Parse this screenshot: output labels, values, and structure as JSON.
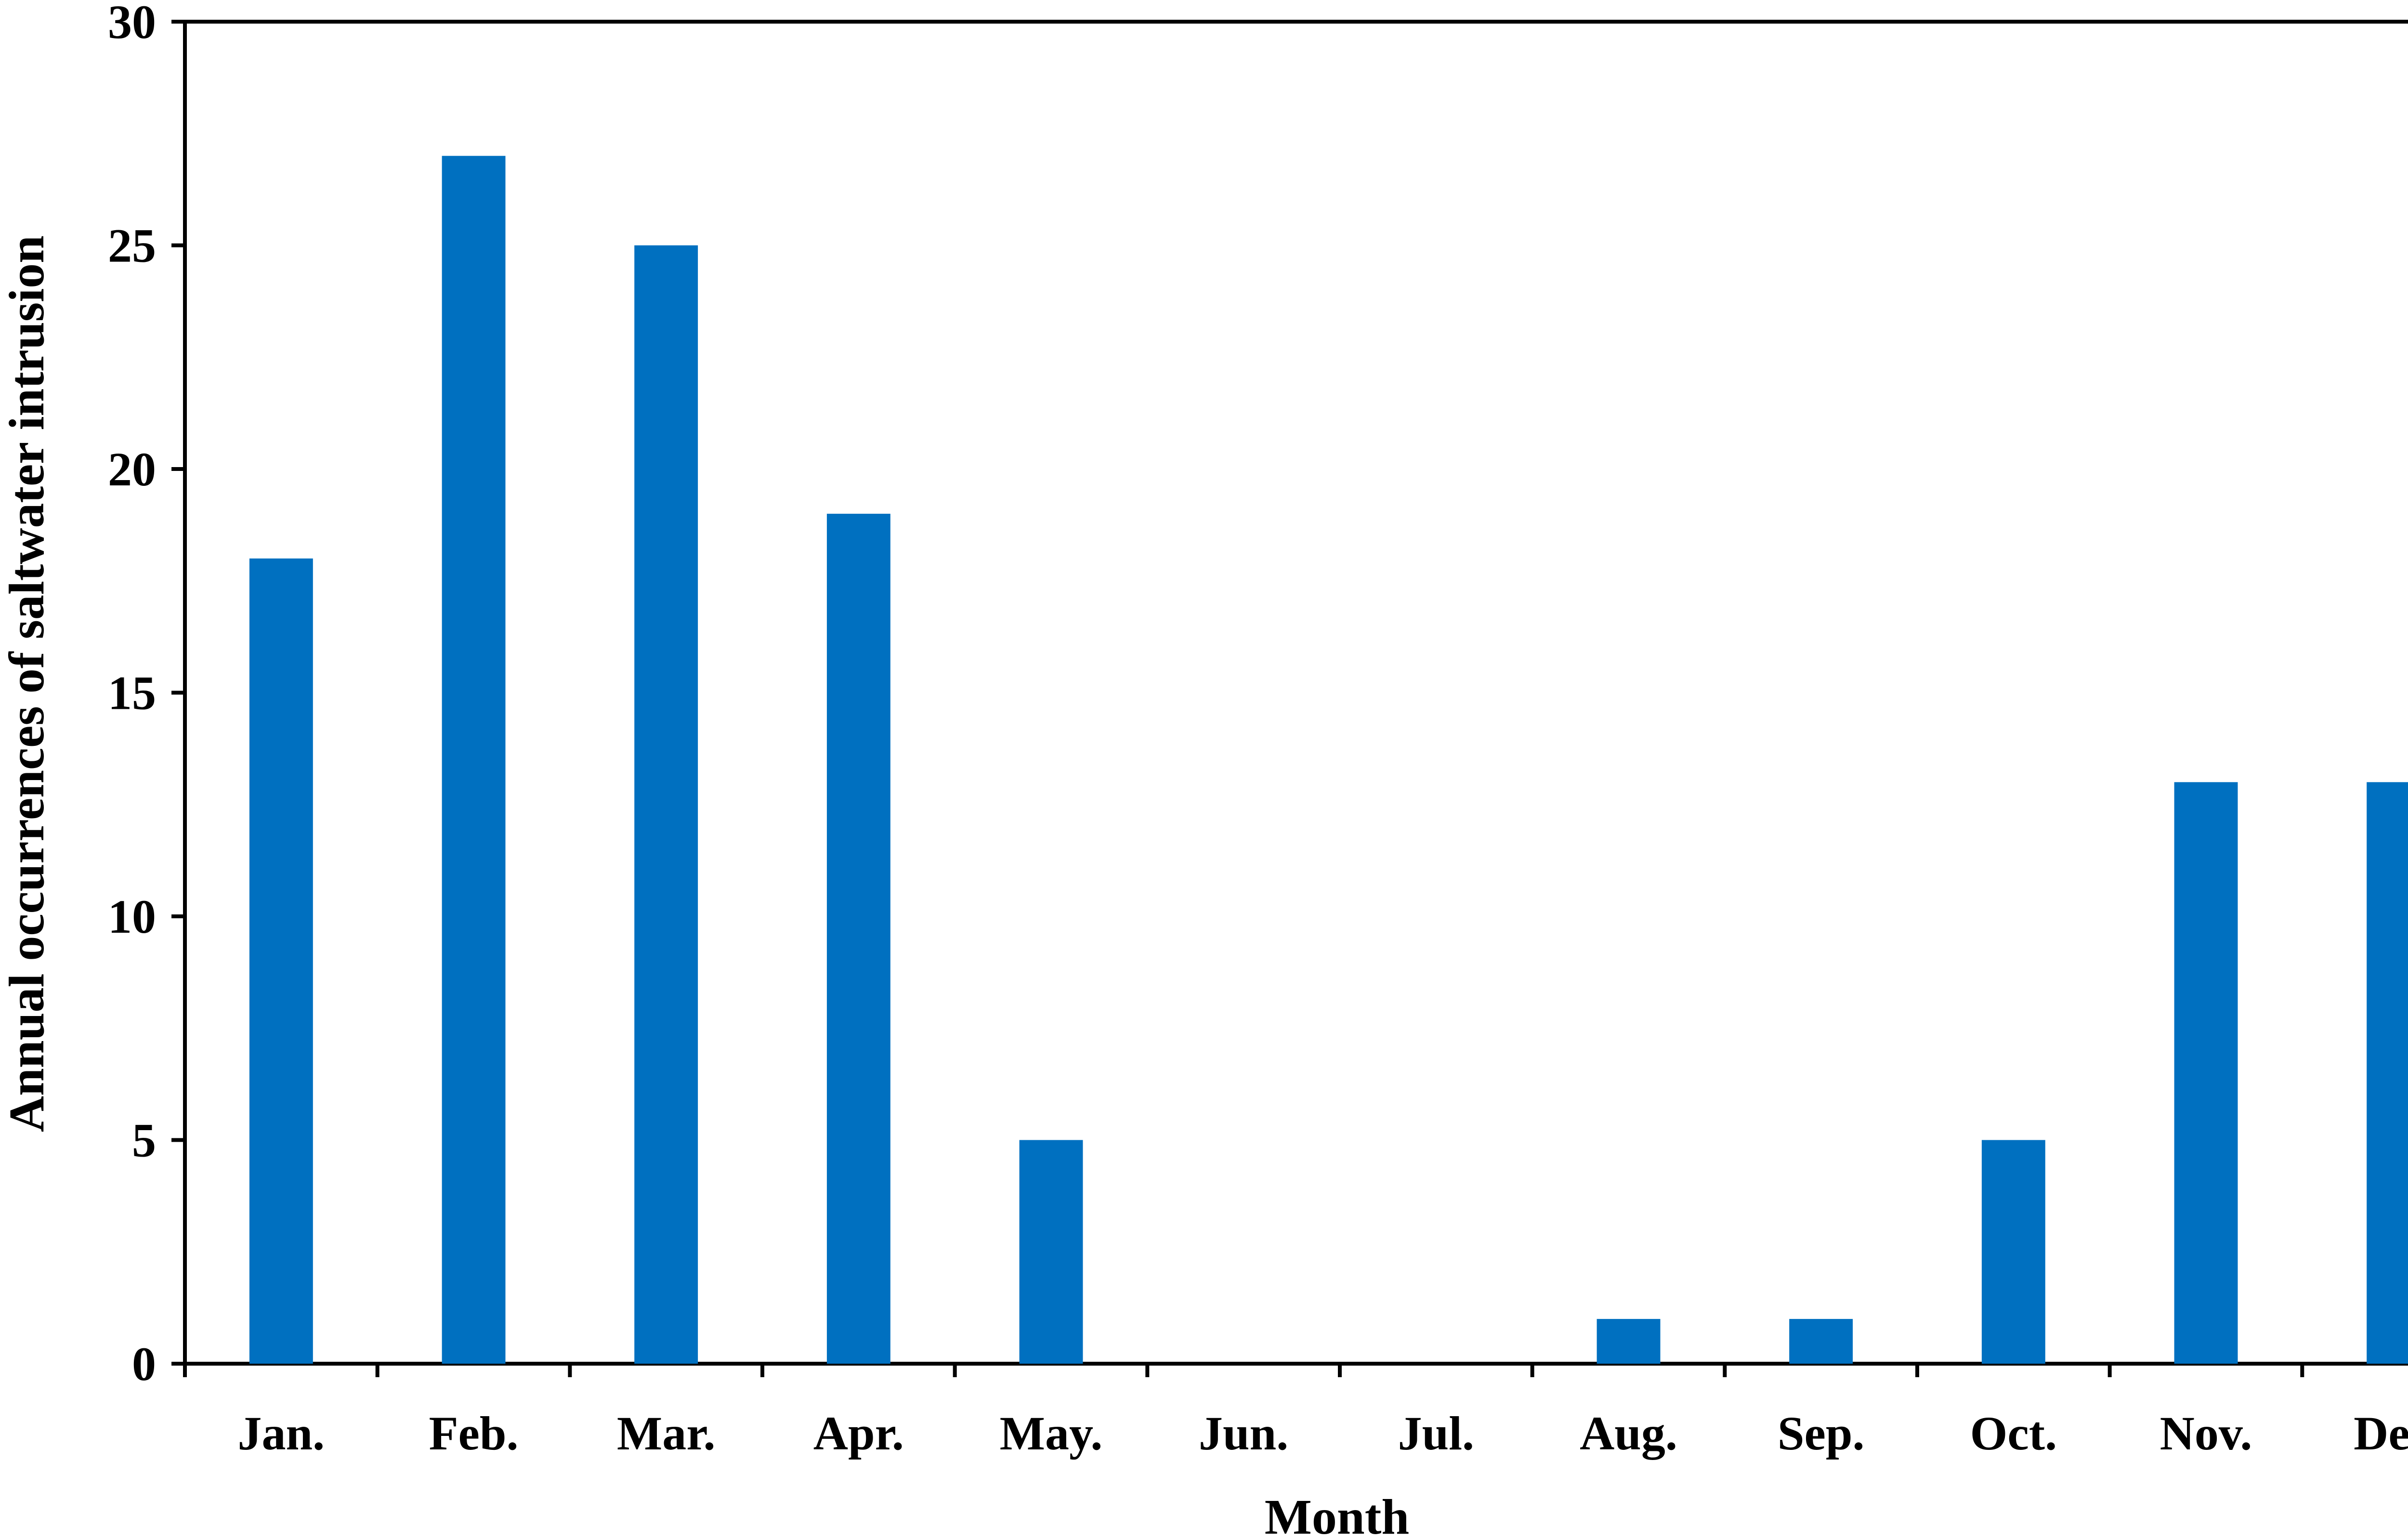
{
  "chart_data": {
    "type": "bar",
    "categories": [
      "Jan.",
      "Feb.",
      "Mar.",
      "Apr.",
      "May.",
      "Jun.",
      "Jul.",
      "Aug.",
      "Sep.",
      "Oct.",
      "Nov.",
      "Dec."
    ],
    "values": [
      18,
      27,
      25,
      19,
      5,
      0,
      0,
      1,
      1,
      5,
      13,
      13
    ],
    "title": "",
    "xlabel": "Month",
    "ylabel": "Annual occurrences of saltwater intrusion",
    "ylim": [
      0,
      30
    ],
    "yticks": [
      0,
      5,
      10,
      15,
      20,
      25,
      30
    ],
    "grid": false,
    "legend": "none",
    "bar_color": "#0070C0",
    "axis_color": "#000000"
  }
}
